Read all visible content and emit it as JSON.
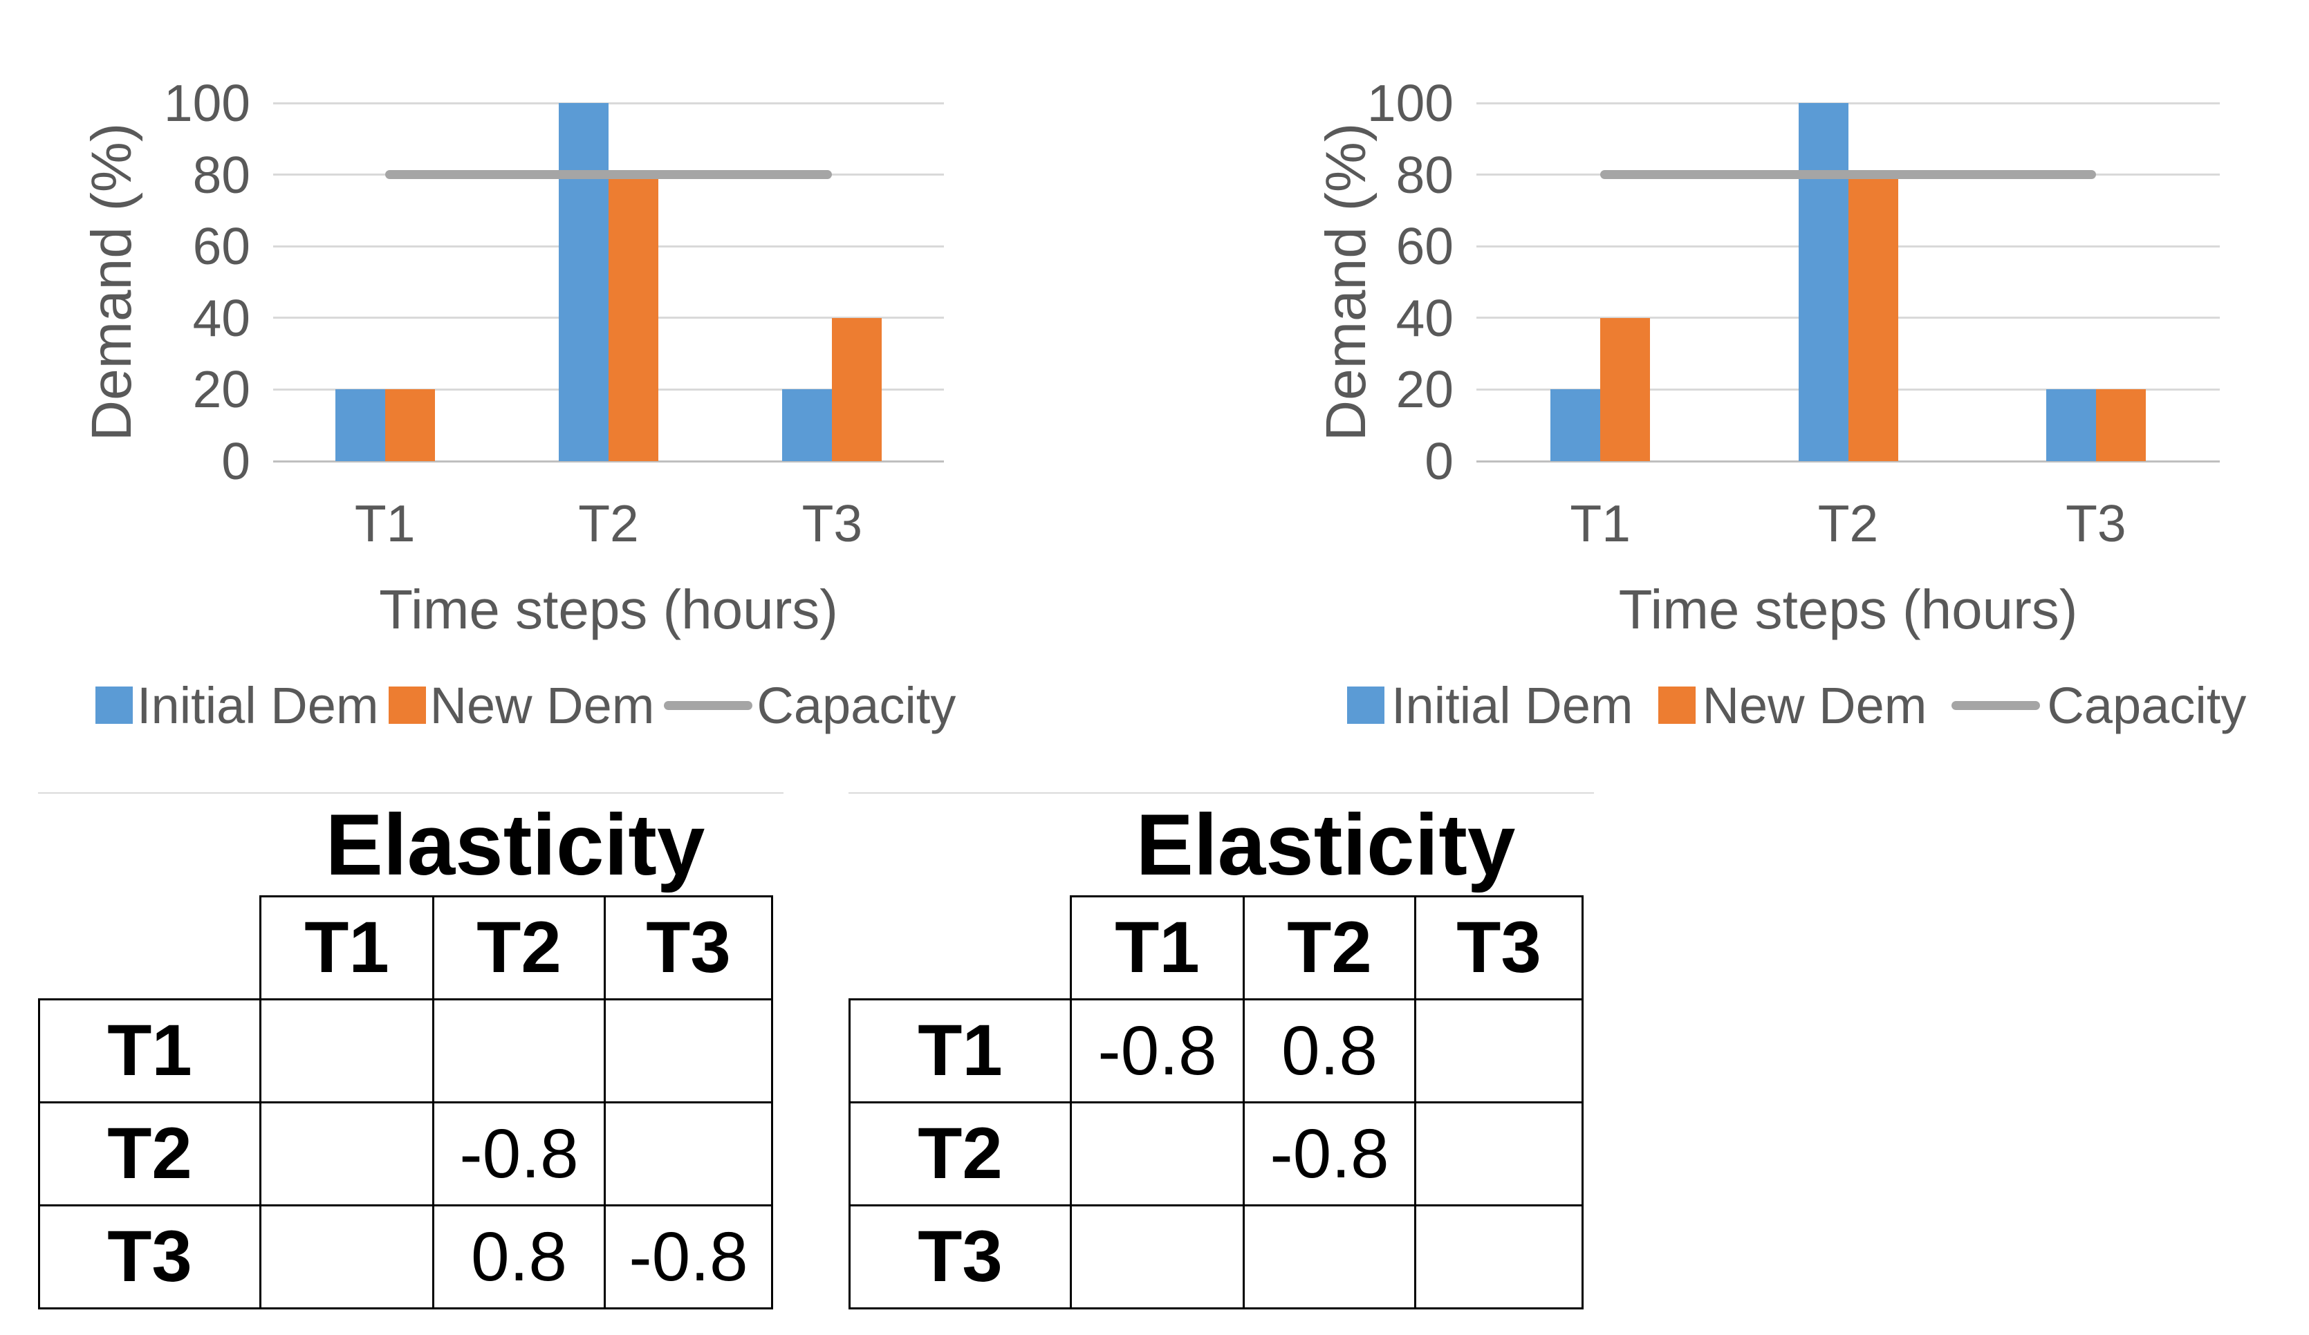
{
  "figure": {
    "background": "#FFFFFF"
  },
  "colors": {
    "initial_dem": "#5B9BD5",
    "new_dem": "#ED7D31",
    "capacity": "#A5A5A5",
    "axis_text": "#595959",
    "gridline": "#D9D9D9",
    "axis_line": "#BFBFBF",
    "table_border": "#000000",
    "panel_edge": "#DADADA"
  },
  "chart_data": [
    {
      "type": "bar",
      "title": "",
      "categories": [
        "T1",
        "T2",
        "T3"
      ],
      "xlabel": "Time steps (hours)",
      "ylabel": "Demand (%)",
      "ylim": [
        0,
        100
      ],
      "yticks": [
        0,
        20,
        40,
        60,
        80,
        100
      ],
      "grid": true,
      "legend_position": "bottom",
      "series": [
        {
          "name": "Initial Dem",
          "type": "bar",
          "color": "#5B9BD5",
          "values": [
            20,
            100,
            20
          ]
        },
        {
          "name": "New Dem",
          "type": "bar",
          "color": "#ED7D31",
          "values": [
            20,
            80,
            40
          ]
        },
        {
          "name": "Capacity",
          "type": "line",
          "color": "#A5A5A5",
          "values": [
            80,
            80,
            80
          ]
        }
      ]
    },
    {
      "type": "bar",
      "title": "",
      "categories": [
        "T1",
        "T2",
        "T3"
      ],
      "xlabel": "Time steps (hours)",
      "ylabel": "Demand (%)",
      "ylim": [
        0,
        100
      ],
      "yticks": [
        0,
        20,
        40,
        60,
        80,
        100
      ],
      "grid": true,
      "legend_position": "bottom",
      "series": [
        {
          "name": "Initial Dem",
          "type": "bar",
          "color": "#5B9BD5",
          "values": [
            20,
            100,
            20
          ]
        },
        {
          "name": "New Dem",
          "type": "bar",
          "color": "#ED7D31",
          "values": [
            40,
            80,
            20
          ]
        },
        {
          "name": "Capacity",
          "type": "line",
          "color": "#A5A5A5",
          "values": [
            80,
            80,
            80
          ]
        }
      ]
    },
    {
      "type": "table",
      "title": "Elasticity",
      "col_headers": [
        "T1",
        "T2",
        "T3"
      ],
      "row_headers": [
        "T1",
        "T2",
        "T3"
      ],
      "values": [
        [
          "",
          "",
          ""
        ],
        [
          "",
          "-0.8",
          ""
        ],
        [
          "",
          "0.8",
          "-0.8"
        ]
      ]
    },
    {
      "type": "table",
      "title": "Elasticity",
      "col_headers": [
        "T1",
        "T2",
        "T3"
      ],
      "row_headers": [
        "T1",
        "T2",
        "T3"
      ],
      "values": [
        [
          "-0.8",
          "0.8",
          ""
        ],
        [
          "",
          "-0.8",
          ""
        ],
        [
          "",
          "",
          ""
        ]
      ]
    }
  ]
}
